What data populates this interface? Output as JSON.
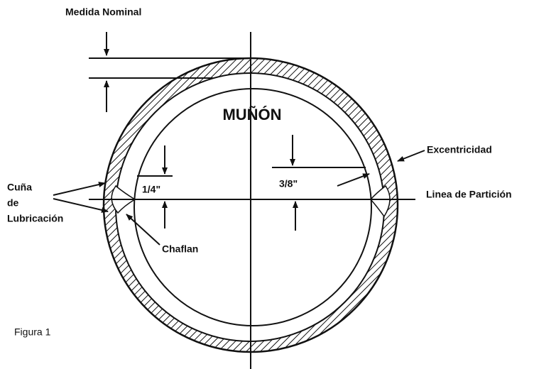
{
  "labels": {
    "medida_nominal": "Medida Nominal",
    "munon": "MUÑÓN",
    "quarter": "1/4\"",
    "three_eighths": "3/8\"",
    "excentricidad": "Excentricidad",
    "particion": "Linea de Partición",
    "cuna_1": "Cuña",
    "cuna_2": "de",
    "cuna_3": "Lubricación",
    "chaflan": "Chaflan",
    "figura": "Figura 1"
  }
}
